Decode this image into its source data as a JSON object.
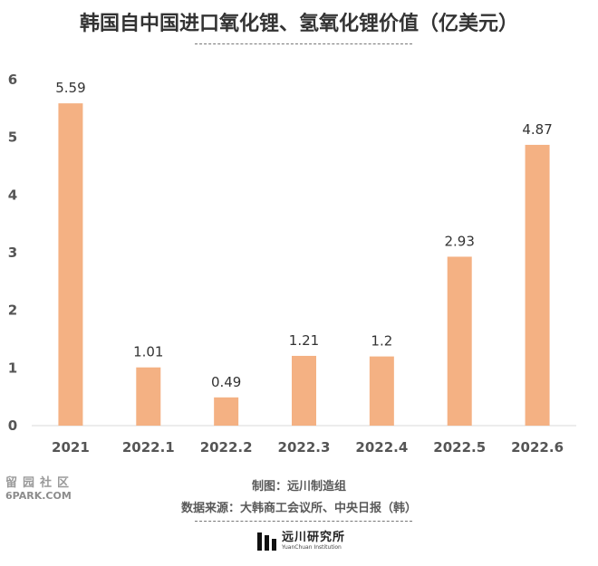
{
  "chart_data": {
    "type": "bar",
    "title": "韩国自中国进口氧化锂、氢氧化锂价值（亿美元）",
    "categories": [
      "2021",
      "2022.1",
      "2022.2",
      "2022.3",
      "2022.4",
      "2022.5",
      "2022.6"
    ],
    "values": [
      5.59,
      1.01,
      0.49,
      1.21,
      1.2,
      2.93,
      4.87
    ],
    "data_labels": [
      "5.59",
      "1.01",
      "0.49",
      "1.21",
      "1.2",
      "2.93",
      "4.87"
    ],
    "y_ticks": [
      "0",
      "1",
      "2",
      "3",
      "4",
      "5",
      "6"
    ],
    "ylim": [
      0,
      6
    ],
    "grid": false,
    "bar_color": "#F4B183"
  },
  "footer": {
    "made_by": "制图：远川制造组",
    "source": "数据来源：大韩商工会议所、中央日报（韩）"
  },
  "logo": {
    "name_cn": "远川研究所",
    "name_en": "YuanChuan Institution"
  },
  "watermark": {
    "cn": "留园社区",
    "en": "6PARK.COM"
  }
}
